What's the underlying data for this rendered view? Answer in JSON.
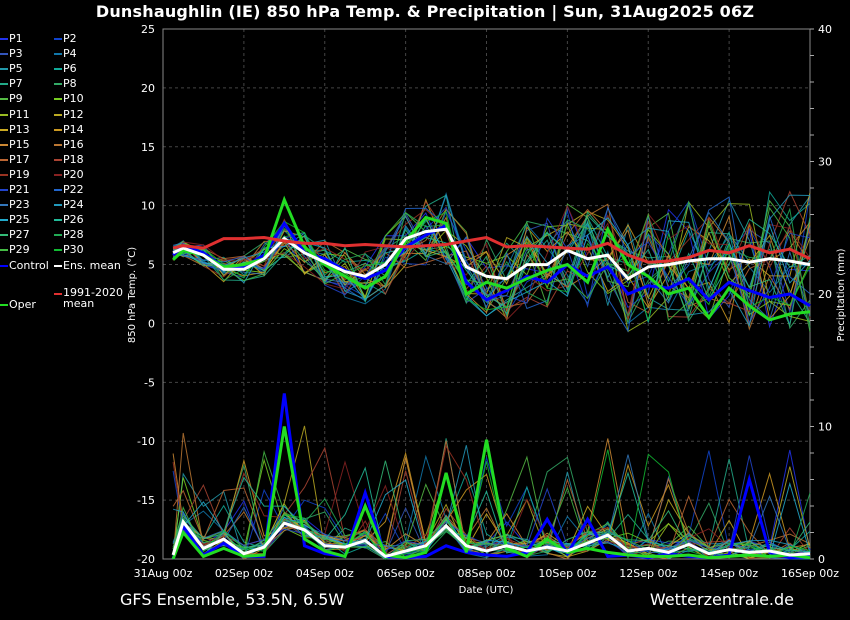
{
  "title": "Dunshaughlin  (IE)  850 hPa Temp. & Precipitation | Sun, 31Aug2025 06Z",
  "footer": {
    "left": "GFS Ensemble, 53.5N, 6.5W",
    "right": "Wetterzentrale.de"
  },
  "legend": {
    "members": [
      {
        "label": "P1",
        "color": "#2233ee"
      },
      {
        "label": "P2",
        "color": "#1144cc"
      },
      {
        "label": "P3",
        "color": "#3355bb"
      },
      {
        "label": "P4",
        "color": "#1177aa"
      },
      {
        "label": "P5",
        "color": "#2299aa"
      },
      {
        "label": "P6",
        "color": "#11aa99"
      },
      {
        "label": "P7",
        "color": "#22aa88"
      },
      {
        "label": "P8",
        "color": "#33aa66"
      },
      {
        "label": "P9",
        "color": "#55bb44"
      },
      {
        "label": "P10",
        "color": "#77cc22"
      },
      {
        "label": "P11",
        "color": "#99bb22"
      },
      {
        "label": "P12",
        "color": "#bbaa22"
      },
      {
        "label": "P13",
        "color": "#ccaa22"
      },
      {
        "label": "P14",
        "color": "#cc9922"
      },
      {
        "label": "P15",
        "color": "#cc8833"
      },
      {
        "label": "P16",
        "color": "#bb7733"
      },
      {
        "label": "P17",
        "color": "#bb6633"
      },
      {
        "label": "P18",
        "color": "#aa4433"
      },
      {
        "label": "P19",
        "color": "#993322"
      },
      {
        "label": "P20",
        "color": "#882222"
      },
      {
        "label": "P21",
        "color": "#2244cc"
      },
      {
        "label": "P22",
        "color": "#2266cc"
      },
      {
        "label": "P23",
        "color": "#3377bb"
      },
      {
        "label": "P24",
        "color": "#2299bb"
      },
      {
        "label": "P25",
        "color": "#22aacc"
      },
      {
        "label": "P26",
        "color": "#22bb99"
      },
      {
        "label": "P27",
        "color": "#33bb77"
      },
      {
        "label": "P28",
        "color": "#22aa55"
      },
      {
        "label": "P29",
        "color": "#44bb44"
      },
      {
        "label": "P30",
        "color": "#11bb33"
      }
    ],
    "control": {
      "label": "Control",
      "color": "#0000ff"
    },
    "ens_mean": {
      "label": "Ens. mean",
      "color": "#ffffff"
    },
    "clim_mean": {
      "label": "1991-2020 mean",
      "color": "#e03030"
    },
    "oper": {
      "label": "Oper",
      "color": "#22dd22"
    }
  },
  "chart_data": {
    "type": "line",
    "title": "Dunshaughlin  (IE)  850 hPa Temp. & Precipitation | Sun, 31Aug2025 06Z",
    "xlabel": "Date (UTC)",
    "ylabel": "850 hPa Temp. (°C)",
    "y2label": "Precipitation (mm)",
    "ylim": [
      -20,
      25
    ],
    "y2lim": [
      0,
      40
    ],
    "yticks": [
      "25",
      "20",
      "15",
      "10",
      "5",
      "0",
      "-5",
      "-10",
      "-15",
      "-20"
    ],
    "y2ticks": [
      "40",
      "30",
      "20",
      "10",
      "0"
    ],
    "xticks": [
      "31Aug 00z",
      "02Sep 00z",
      "04Sep 00z",
      "06Sep 00z",
      "08Sep 00z",
      "10Sep 00z",
      "12Sep 00z",
      "14Sep 00z",
      "16Sep 00z"
    ],
    "x_range_days": [
      0,
      16
    ],
    "grid": true,
    "temperature_series": [
      {
        "name": "Control",
        "days": [
          0.25,
          0.5,
          1,
          1.5,
          2,
          2.5,
          3,
          3.5,
          4,
          4.5,
          5,
          5.5,
          6,
          6.5,
          7,
          7.5,
          8,
          8.5,
          9,
          9.5,
          10,
          10.5,
          11,
          11.5,
          12,
          12.5,
          13,
          13.5,
          14,
          14.5,
          15,
          15.5,
          16
        ],
        "values": [
          5.8,
          6.6,
          6.0,
          4.8,
          4.8,
          5.8,
          8.5,
          6.0,
          5.5,
          4.5,
          3.8,
          4.5,
          6.5,
          7.5,
          8.3,
          3.5,
          2.0,
          2.8,
          4.0,
          3.5,
          5.0,
          4.0,
          4.8,
          2.5,
          3.2,
          3.0,
          3.8,
          2.0,
          3.5,
          2.8,
          2.2,
          2.5,
          1.5
        ]
      },
      {
        "name": "Ens. mean",
        "days": [
          0.25,
          0.5,
          1,
          1.5,
          2,
          2.5,
          3,
          3.5,
          4,
          4.5,
          5,
          5.5,
          6,
          6.5,
          7,
          7.5,
          8,
          8.5,
          9,
          9.5,
          10,
          10.5,
          11,
          11.5,
          12,
          12.5,
          13,
          13.5,
          14,
          14.5,
          15,
          15.5,
          16
        ],
        "values": [
          6.0,
          6.4,
          5.8,
          4.6,
          4.6,
          5.5,
          7.2,
          6.0,
          5.2,
          4.4,
          4.0,
          5.0,
          7.2,
          7.8,
          8.0,
          4.8,
          4.0,
          3.8,
          5.0,
          5.0,
          6.2,
          5.5,
          5.8,
          3.8,
          4.8,
          5.0,
          5.3,
          5.5,
          5.5,
          5.2,
          5.5,
          5.3,
          5.0
        ]
      },
      {
        "name": "1991-2020 mean",
        "days": [
          0.25,
          0.5,
          1,
          1.5,
          2,
          2.5,
          3,
          3.5,
          4,
          4.5,
          5,
          5.5,
          6,
          6.5,
          7,
          7.5,
          8,
          8.5,
          9,
          9.5,
          10,
          10.5,
          11,
          11.5,
          12,
          12.5,
          13,
          13.5,
          14,
          14.5,
          15,
          15.5,
          16
        ],
        "values": [
          6.4,
          6.6,
          6.4,
          7.2,
          7.2,
          7.3,
          7.0,
          6.8,
          6.8,
          6.6,
          6.7,
          6.6,
          6.5,
          6.6,
          6.7,
          7.0,
          7.3,
          6.5,
          6.6,
          6.5,
          6.4,
          6.3,
          6.8,
          5.8,
          5.2,
          5.3,
          5.6,
          6.2,
          6.0,
          6.6,
          6.0,
          6.3,
          5.5
        ]
      },
      {
        "name": "Oper",
        "days": [
          0.25,
          0.5,
          1,
          1.5,
          2,
          2.5,
          3,
          3.5,
          4,
          4.5,
          5,
          5.5,
          6,
          6.5,
          7,
          7.5,
          8,
          8.5,
          9,
          9.5,
          10,
          10.5,
          11,
          11.5,
          12,
          12.5,
          13,
          13.5,
          14,
          14.5,
          15,
          15.5,
          16
        ],
        "values": [
          5.4,
          6.2,
          5.8,
          4.8,
          5.0,
          5.5,
          10.5,
          6.5,
          5.0,
          4.0,
          3.0,
          4.0,
          7.0,
          9.0,
          8.5,
          2.5,
          3.5,
          3.0,
          3.8,
          4.5,
          5.0,
          3.5,
          8.0,
          5.0,
          4.0,
          2.5,
          3.0,
          0.5,
          3.0,
          1.5,
          0.3,
          0.8,
          1.0
        ]
      }
    ],
    "precipitation_series": [
      {
        "name": "Control",
        "days": [
          0.25,
          0.5,
          1,
          1.5,
          2,
          2.5,
          3,
          3.5,
          4,
          4.5,
          5,
          5.5,
          6,
          6.5,
          7,
          7.5,
          8,
          8.5,
          9,
          9.5,
          10,
          10.5,
          11,
          11.5,
          12,
          12.5,
          13,
          13.5,
          14,
          14.5,
          15,
          15.5,
          16
        ],
        "values": [
          0,
          2.5,
          0.3,
          1.2,
          0.2,
          0.2,
          12.5,
          1.0,
          0.4,
          0.2,
          5.0,
          0.2,
          0.1,
          0.2,
          1.0,
          0.5,
          0.3,
          0.2,
          0.5,
          3.0,
          0.4,
          3.0,
          0.2,
          0.3,
          0.1,
          0.4,
          0.2,
          0.1,
          0.3,
          6.0,
          0.5,
          0.1,
          0.2
        ]
      },
      {
        "name": "Ens. mean",
        "days": [
          0.25,
          0.5,
          1,
          1.5,
          2,
          2.5,
          3,
          3.5,
          4,
          4.5,
          5,
          5.5,
          6,
          6.5,
          7,
          7.5,
          8,
          8.5,
          9,
          9.5,
          10,
          10.5,
          11,
          11.5,
          12,
          12.5,
          13,
          13.5,
          14,
          14.5,
          15,
          15.5,
          16
        ],
        "values": [
          0.3,
          2.8,
          0.8,
          1.5,
          0.4,
          0.9,
          2.7,
          2.2,
          1.0,
          0.9,
          1.4,
          0.2,
          0.6,
          1.0,
          2.5,
          1.0,
          0.6,
          1.0,
          0.6,
          0.9,
          0.6,
          1.2,
          1.8,
          0.6,
          0.8,
          0.5,
          1.1,
          0.4,
          0.7,
          0.5,
          0.6,
          0.3,
          0.4
        ]
      },
      {
        "name": "Oper",
        "days": [
          0.25,
          0.5,
          1,
          1.5,
          2,
          2.5,
          3,
          3.5,
          4,
          4.5,
          5,
          5.5,
          6,
          6.5,
          7,
          7.5,
          8,
          8.5,
          9,
          9.5,
          10,
          10.5,
          11,
          11.5,
          12,
          12.5,
          13,
          13.5,
          14,
          14.5,
          15,
          15.5,
          16
        ],
        "values": [
          0,
          2.0,
          0.2,
          0.8,
          0.2,
          0.3,
          10.0,
          1.5,
          0.6,
          0.2,
          4.0,
          0.3,
          0.1,
          0.5,
          6.5,
          0.5,
          9.0,
          0.8,
          0.2,
          1.5,
          0.5,
          0.8,
          0.5,
          0.3,
          0.2,
          0.2,
          0.3,
          0.1,
          0.2,
          0.3,
          0.2,
          0.3,
          0.1
        ]
      }
    ]
  }
}
